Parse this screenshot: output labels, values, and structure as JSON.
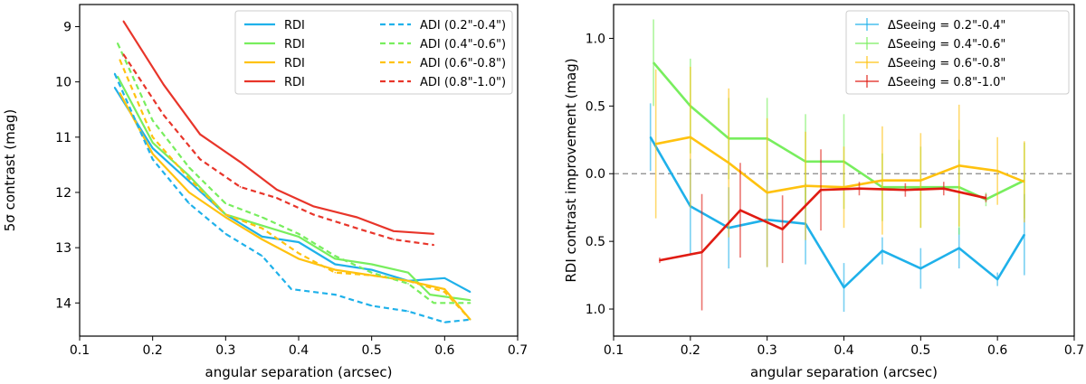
{
  "chart_data": [
    {
      "type": "line",
      "xlabel": "angular separation (arcsec)",
      "ylabel": "5σ contrast (mag)",
      "xlim": [
        0.1,
        0.7
      ],
      "ylim": [
        14.6,
        8.6
      ],
      "y_inverted": true,
      "xticks": [
        "0.1",
        "0.2",
        "0.3",
        "0.4",
        "0.5",
        "0.6",
        "0.7"
      ],
      "yticks": [
        "9",
        "10",
        "11",
        "12",
        "13",
        "14"
      ],
      "legend_position": "top-right",
      "series": [
        {
          "name": "RDI",
          "color": "#1fb1ea",
          "dash": false,
          "x": [
            0.148,
            0.2,
            0.25,
            0.3,
            0.35,
            0.4,
            0.45,
            0.5,
            0.55,
            0.6,
            0.635
          ],
          "y": [
            10.1,
            11.2,
            11.8,
            12.4,
            12.8,
            12.9,
            13.3,
            13.4,
            13.6,
            13.55,
            13.8
          ]
        },
        {
          "name": "RDI",
          "color": "#78ee5e",
          "dash": false,
          "x": [
            0.152,
            0.2,
            0.25,
            0.3,
            0.35,
            0.4,
            0.45,
            0.5,
            0.55,
            0.58,
            0.635
          ],
          "y": [
            9.9,
            11.1,
            11.7,
            12.4,
            12.6,
            12.8,
            13.2,
            13.3,
            13.45,
            13.85,
            13.95
          ]
        },
        {
          "name": "RDI",
          "color": "#ffc20f",
          "dash": false,
          "x": [
            0.155,
            0.2,
            0.25,
            0.3,
            0.35,
            0.4,
            0.45,
            0.5,
            0.55,
            0.6,
            0.635
          ],
          "y": [
            10.2,
            11.3,
            12.0,
            12.45,
            12.85,
            13.2,
            13.4,
            13.5,
            13.6,
            13.75,
            14.3
          ]
        },
        {
          "name": "RDI",
          "color": "#e8352a",
          "dash": false,
          "x": [
            0.16,
            0.215,
            0.265,
            0.32,
            0.37,
            0.42,
            0.48,
            0.53,
            0.585
          ],
          "y": [
            8.9,
            10.05,
            10.95,
            11.45,
            11.95,
            12.25,
            12.45,
            12.7,
            12.75
          ]
        },
        {
          "name": "ADI (0.2\"-0.4\")",
          "color": "#1fb1ea",
          "dash": true,
          "x": [
            0.148,
            0.2,
            0.25,
            0.3,
            0.35,
            0.39,
            0.45,
            0.5,
            0.55,
            0.6,
            0.635
          ],
          "y": [
            9.85,
            11.4,
            12.2,
            12.75,
            13.15,
            13.75,
            13.85,
            14.05,
            14.15,
            14.35,
            14.3
          ]
        },
        {
          "name": "ADI (0.4\"-0.6\")",
          "color": "#78ee5e",
          "dash": true,
          "x": [
            0.152,
            0.2,
            0.25,
            0.3,
            0.35,
            0.4,
            0.45,
            0.5,
            0.55,
            0.585,
            0.635
          ],
          "y": [
            9.3,
            10.7,
            11.55,
            12.2,
            12.45,
            12.75,
            13.15,
            13.45,
            13.65,
            14.0,
            14.0
          ]
        },
        {
          "name": "ADI (0.6\"-0.8\")",
          "color": "#ffc20f",
          "dash": true,
          "x": [
            0.155,
            0.2,
            0.25,
            0.3,
            0.35,
            0.4,
            0.45,
            0.5,
            0.55,
            0.6,
            0.635
          ],
          "y": [
            9.6,
            11.0,
            11.75,
            12.4,
            12.65,
            13.1,
            13.45,
            13.5,
            13.6,
            13.8,
            14.3
          ]
        },
        {
          "name": "ADI (0.8\"-1.0\")",
          "color": "#e8352a",
          "dash": true,
          "x": [
            0.16,
            0.215,
            0.265,
            0.32,
            0.37,
            0.42,
            0.48,
            0.53,
            0.585
          ],
          "y": [
            9.5,
            10.6,
            11.4,
            11.9,
            12.1,
            12.4,
            12.65,
            12.85,
            12.95
          ]
        }
      ]
    },
    {
      "type": "line",
      "xlabel": "angular separation (arcsec)",
      "ylabel": "RDI contrast improvement (mag)",
      "xlim": [
        0.1,
        0.7
      ],
      "ylim": [
        1.2,
        -1.25
      ],
      "y_inverted": true,
      "xticks": [
        "0.1",
        "0.2",
        "0.3",
        "0.4",
        "0.5",
        "0.6",
        "0.7"
      ],
      "yticks": [
        "1.0",
        "0.5",
        "0.0",
        "0.5",
        "1.0"
      ],
      "ytick_values": [
        -1.0,
        -0.5,
        0.0,
        0.5,
        1.0
      ],
      "reference_line": 0.0,
      "legend_position": "top-right",
      "series": [
        {
          "name": "ΔSeeing = 0.2\"-0.4\"",
          "color": "#1fb1ea",
          "x": [
            0.148,
            0.2,
            0.25,
            0.3,
            0.35,
            0.4,
            0.45,
            0.5,
            0.55,
            0.6,
            0.635
          ],
          "y": [
            -0.27,
            0.24,
            0.4,
            0.34,
            0.37,
            0.84,
            0.57,
            0.7,
            0.55,
            0.78,
            0.45
          ],
          "err": [
            0.25,
            0.35,
            0.3,
            0.35,
            0.3,
            0.18,
            0.1,
            0.15,
            0.15,
            0.05,
            0.3
          ]
        },
        {
          "name": "ΔSeeing = 0.4\"-0.6\"",
          "color": "#78ee5e",
          "x": [
            0.152,
            0.2,
            0.25,
            0.3,
            0.35,
            0.4,
            0.45,
            0.5,
            0.55,
            0.585,
            0.635
          ],
          "y": [
            -0.82,
            -0.5,
            -0.26,
            -0.26,
            -0.09,
            -0.09,
            0.1,
            0.1,
            0.1,
            0.19,
            0.05
          ],
          "err": [
            0.32,
            0.35,
            0.3,
            0.3,
            0.35,
            0.35,
            0.25,
            0.3,
            0.35,
            0.05,
            0.28
          ]
        },
        {
          "name": "ΔSeeing = 0.6\"-0.8\"",
          "color": "#ffc20f",
          "x": [
            0.155,
            0.2,
            0.25,
            0.3,
            0.35,
            0.4,
            0.45,
            0.5,
            0.55,
            0.6,
            0.635
          ],
          "y": [
            -0.22,
            -0.27,
            -0.08,
            0.14,
            0.09,
            0.1,
            0.05,
            0.05,
            -0.06,
            -0.02,
            0.06
          ],
          "err": [
            0.55,
            0.52,
            0.55,
            0.55,
            0.4,
            0.3,
            0.4,
            0.35,
            0.45,
            0.25,
            0.3
          ]
        },
        {
          "name": "ΔSeeing = 0.8\"-1.0\"",
          "color": "#e01b12",
          "x": [
            0.16,
            0.215,
            0.265,
            0.32,
            0.37,
            0.42,
            0.48,
            0.53,
            0.585
          ],
          "y": [
            0.64,
            0.58,
            0.27,
            0.41,
            0.12,
            0.11,
            0.12,
            0.11,
            0.18
          ],
          "err": [
            0.02,
            0.43,
            0.35,
            0.25,
            0.3,
            0.05,
            0.05,
            0.05,
            0.03
          ]
        }
      ]
    }
  ]
}
